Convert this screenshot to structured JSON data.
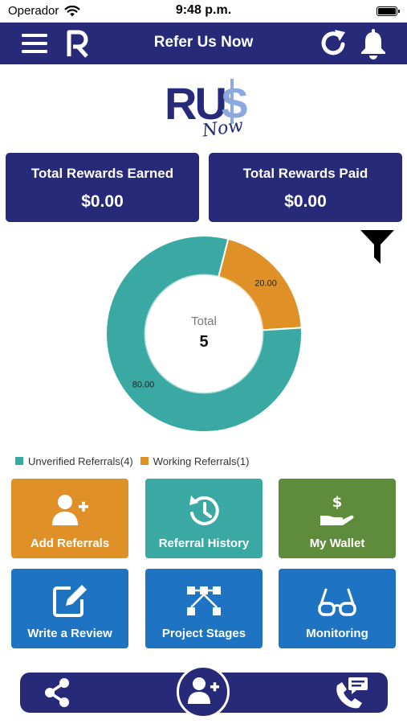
{
  "status_bar": {
    "carrier": "Operador",
    "time": "9:48 p.m."
  },
  "header": {
    "title": "Refer Us Now",
    "icons": [
      "hamburger-menu-icon",
      "app-logo-icon",
      "refresh-icon",
      "bell-icon"
    ]
  },
  "brand": {
    "logo_text": "RU$",
    "logo_script": "Now"
  },
  "summary": {
    "earned_label": "Total Rewards Earned",
    "earned_value": "$0.00",
    "paid_label": "Total Rewards Paid",
    "paid_value": "$0.00"
  },
  "filter": {
    "icon": "filter-icon"
  },
  "chart_data": {
    "type": "pie",
    "center_label": "Total",
    "center_value": "5",
    "slices": [
      {
        "label": "Unverified Referrals(4)",
        "count": 4,
        "value": 80.0,
        "value_label": "80.00",
        "color": "#3aa9a4"
      },
      {
        "label": "Working Referrals(1)",
        "count": 1,
        "value": 20.0,
        "value_label": "20.00",
        "color": "#df9027"
      }
    ],
    "legend_position": "bottom-left"
  },
  "legend": {
    "unverified": "Unverified Referrals(4)",
    "working": "Working Referrals(1)"
  },
  "colors": {
    "primary": "#262a78",
    "teal": "#3aa9a4",
    "orange": "#df9027",
    "green": "#5f8c3c",
    "blue": "#1e74c2"
  },
  "tiles": [
    {
      "label": "Add Referrals",
      "icon": "add-user-icon",
      "color": "#df9027"
    },
    {
      "label": "Referral History",
      "icon": "history-icon",
      "color": "#3aa9a4"
    },
    {
      "label": "My Wallet",
      "icon": "wallet-icon",
      "color": "#5f8c3c"
    },
    {
      "label": "Write a Review",
      "icon": "edit-icon",
      "color": "#1e74c2"
    },
    {
      "label": "Project Stages",
      "icon": "stages-icon",
      "color": "#1e74c2"
    },
    {
      "label": "Monitoring",
      "icon": "glasses-icon",
      "color": "#1e74c2"
    }
  ],
  "bottom_nav": {
    "icons": [
      "share-icon",
      "add-user-icon",
      "phone-support-icon"
    ]
  }
}
